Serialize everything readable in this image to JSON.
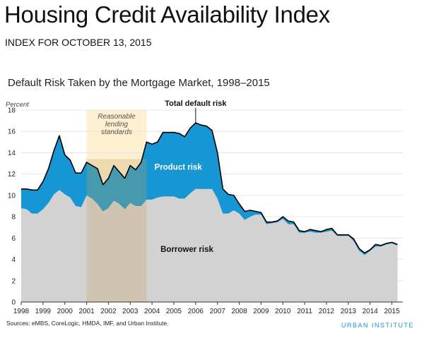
{
  "header": {
    "title": "Housing Credit Availability Index",
    "subtitle": "INDEX FOR OCTOBER 13, 2015"
  },
  "footer": {
    "sources": "Sources: eMBS, CoreLogic, HMDA, IMF, and Urban Institute.",
    "logo": "URBAN INSTITUTE"
  },
  "colors": {
    "product_risk": "#1696d2",
    "borrower_risk": "#d2d2d2",
    "highlight": "#fdf0d0",
    "total_line": "#000000"
  },
  "chart_data": {
    "type": "area",
    "title": "Default Risk Taken by the Mortgage Market, 1998–2015",
    "ylabel": "Percent",
    "xlabel": "",
    "ylim": [
      0,
      18
    ],
    "xlim": [
      1998,
      2015.5
    ],
    "y_ticks": [
      "0",
      "2",
      "4",
      "6",
      "8",
      "10",
      "12",
      "14",
      "16",
      "18"
    ],
    "x_ticks": [
      "1998",
      "1999",
      "2000",
      "2001",
      "2002",
      "2003",
      "2004",
      "2005",
      "2006",
      "2007",
      "2008",
      "2009",
      "2010",
      "2011",
      "2012",
      "2013",
      "2014",
      "2015"
    ],
    "highlight": {
      "label_lines": [
        "Reasonable",
        "lending",
        "standards"
      ],
      "x_range": [
        2001,
        2003.75
      ]
    },
    "annotations": {
      "total": "Total default risk",
      "product": "Product risk",
      "borrower": "Borrower risk"
    },
    "series": [
      {
        "name": "Total default risk",
        "x": [
          1998,
          1998.25,
          1998.5,
          1998.75,
          1999,
          1999.25,
          1999.5,
          1999.75,
          2000,
          2000.25,
          2000.5,
          2000.75,
          2001,
          2001.25,
          2001.5,
          2001.75,
          2002,
          2002.25,
          2002.5,
          2002.75,
          2003,
          2003.25,
          2003.5,
          2003.75,
          2004,
          2004.25,
          2004.5,
          2004.75,
          2005,
          2005.25,
          2005.5,
          2005.75,
          2006,
          2006.25,
          2006.5,
          2006.75,
          2007,
          2007.25,
          2007.5,
          2007.75,
          2008,
          2008.25,
          2008.5,
          2008.75,
          2009,
          2009.25,
          2009.5,
          2009.75,
          2010,
          2010.25,
          2010.5,
          2010.75,
          2011,
          2011.25,
          2011.5,
          2011.75,
          2012,
          2012.25,
          2012.5,
          2012.75,
          2013,
          2013.25,
          2013.5,
          2013.75,
          2014,
          2014.25,
          2014.5,
          2014.75,
          2015,
          2015.25
        ],
        "values": [
          10.6,
          10.6,
          10.5,
          10.5,
          11.3,
          12.5,
          14.2,
          15.6,
          13.8,
          13.3,
          12.1,
          12.1,
          13.1,
          12.8,
          12.5,
          11.0,
          11.6,
          12.8,
          12.2,
          11.6,
          12.8,
          12.4,
          13.1,
          15.0,
          14.8,
          15.0,
          15.9,
          15.9,
          15.9,
          15.8,
          15.5,
          16.3,
          16.8,
          16.6,
          16.5,
          16.1,
          14.0,
          10.6,
          10.1,
          10.0,
          9.2,
          8.5,
          8.6,
          8.5,
          8.4,
          7.5,
          7.5,
          7.6,
          8.0,
          7.6,
          7.5,
          6.7,
          6.6,
          6.8,
          6.7,
          6.6,
          6.8,
          6.9,
          6.3,
          6.3,
          6.3,
          5.9,
          5.0,
          4.6,
          4.9,
          5.4,
          5.3,
          5.5,
          5.6,
          5.4
        ]
      },
      {
        "name": "Borrower risk",
        "x": [
          1998,
          1998.25,
          1998.5,
          1998.75,
          1999,
          1999.25,
          1999.5,
          1999.75,
          2000,
          2000.25,
          2000.5,
          2000.75,
          2001,
          2001.25,
          2001.5,
          2001.75,
          2002,
          2002.25,
          2002.5,
          2002.75,
          2003,
          2003.25,
          2003.5,
          2003.75,
          2004,
          2004.25,
          2004.5,
          2004.75,
          2005,
          2005.25,
          2005.5,
          2005.75,
          2006,
          2006.25,
          2006.5,
          2006.75,
          2007,
          2007.25,
          2007.5,
          2007.75,
          2008,
          2008.25,
          2008.5,
          2008.75,
          2009,
          2009.25,
          2009.5,
          2009.75,
          2010,
          2010.25,
          2010.5,
          2010.75,
          2011,
          2011.25,
          2011.5,
          2011.75,
          2012,
          2012.25,
          2012.5,
          2012.75,
          2013,
          2013.25,
          2013.5,
          2013.75,
          2014,
          2014.25,
          2014.5,
          2014.75,
          2015,
          2015.25
        ],
        "values": [
          8.8,
          8.7,
          8.3,
          8.3,
          8.7,
          9.3,
          10.1,
          10.5,
          10.1,
          9.8,
          9.0,
          8.9,
          10.0,
          9.7,
          9.2,
          8.5,
          8.8,
          9.5,
          9.2,
          8.7,
          9.3,
          9.0,
          9.0,
          9.6,
          9.6,
          9.8,
          9.9,
          9.9,
          9.9,
          9.7,
          9.7,
          10.2,
          10.6,
          10.6,
          10.6,
          10.6,
          9.7,
          8.3,
          8.3,
          8.6,
          8.3,
          7.7,
          8.0,
          8.2,
          8.2,
          7.3,
          7.4,
          7.5,
          7.8,
          7.3,
          7.3,
          6.5,
          6.5,
          6.6,
          6.5,
          6.5,
          6.6,
          6.7,
          6.2,
          6.2,
          6.2,
          5.7,
          4.8,
          4.4,
          4.8,
          5.2,
          5.2,
          5.4,
          5.5,
          5.3
        ]
      }
    ]
  }
}
